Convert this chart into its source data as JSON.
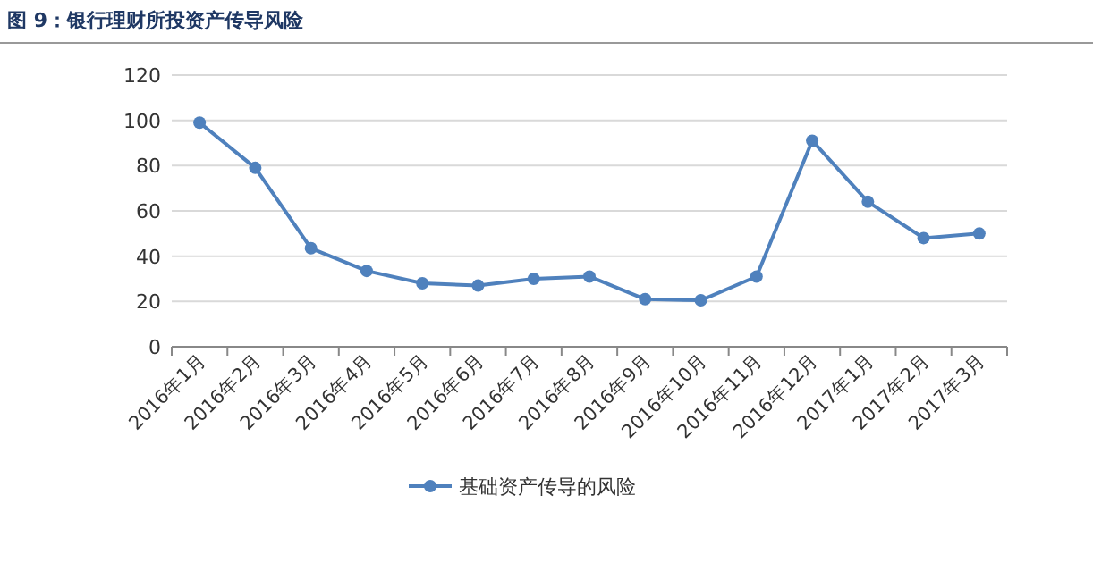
{
  "chart_data": {
    "type": "line",
    "title": "图 9：银行理财所投资产传导风险",
    "categories": [
      "2016年1月",
      "2016年2月",
      "2016年3月",
      "2016年4月",
      "2016年5月",
      "2016年6月",
      "2016年7月",
      "2016年8月",
      "2016年9月",
      "2016年10月",
      "2016年11月",
      "2016年12月",
      "2017年1月",
      "2017年2月",
      "2017年3月"
    ],
    "series": [
      {
        "name": "基础资产传导的风险",
        "color": "#4f81bd",
        "values": [
          99,
          79,
          43.5,
          33.5,
          28,
          27,
          30,
          31,
          21,
          20.5,
          31,
          91,
          64,
          48,
          50
        ]
      }
    ],
    "ylim": [
      0,
      120
    ],
    "yticks": [
      0,
      20,
      40,
      60,
      80,
      100,
      120
    ],
    "grid": "y",
    "legend": "bottom",
    "marker": "circle",
    "line_style": "solid"
  }
}
